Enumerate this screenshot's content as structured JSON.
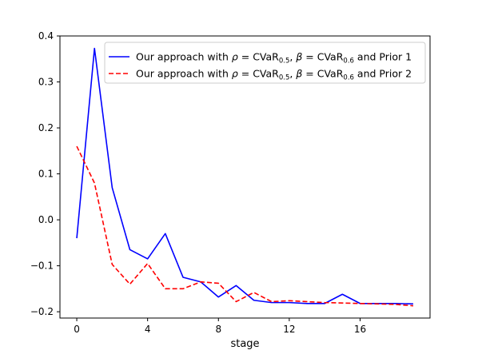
{
  "chart_data": {
    "type": "line",
    "title": "",
    "xlabel": "stage",
    "ylabel": "",
    "xlim": [
      -0.95,
      19.95
    ],
    "ylim": [
      -0.2137,
      0.4
    ],
    "xticks": [
      0,
      4,
      8,
      12,
      16
    ],
    "yticks": [
      -0.2,
      -0.1,
      0.0,
      0.1,
      0.2,
      0.3,
      0.4
    ],
    "ytick_labels": [
      "−0.2",
      "−0.1",
      "0.0",
      "0.1",
      "0.2",
      "0.3",
      "0.4"
    ],
    "grid": false,
    "legend_position": "upper right",
    "x": [
      0,
      1,
      2,
      3,
      4,
      5,
      6,
      7,
      8,
      9,
      10,
      11,
      12,
      13,
      14,
      15,
      16,
      17,
      18,
      19
    ],
    "series": [
      {
        "name": "Our approach with ρ = CVaR0.5, β = CVaR0.6 and Prior 1",
        "legend_parts": {
          "prefix": "Our approach with ",
          "rho": "ρ",
          "eq": " = CVaR",
          "sub1": "0.5",
          "mid": ", ",
          "beta": "β",
          "eq2": " = CVaR",
          "sub2": "0.6",
          "suffix": " and Prior 1"
        },
        "color": "#0000ff",
        "dash": "solid",
        "values": [
          -0.04,
          0.373,
          0.07,
          -0.065,
          -0.085,
          -0.03,
          -0.125,
          -0.135,
          -0.168,
          -0.143,
          -0.175,
          -0.18,
          -0.18,
          -0.182,
          -0.182,
          -0.162,
          -0.182,
          -0.182,
          -0.182,
          -0.183
        ]
      },
      {
        "name": "Our approach with ρ = CVaR0.5, β = CVaR0.6 and Prior 2",
        "legend_parts": {
          "prefix": "Our approach with ",
          "rho": "ρ",
          "eq": " = CVaR",
          "sub1": "0.5",
          "mid": ", ",
          "beta": "β",
          "eq2": " = CVaR",
          "sub2": "0.6",
          "suffix": " and Prior 2"
        },
        "color": "#ff0000",
        "dash": "dashed",
        "values": [
          0.16,
          0.08,
          -0.097,
          -0.14,
          -0.095,
          -0.15,
          -0.15,
          -0.135,
          -0.138,
          -0.178,
          -0.158,
          -0.178,
          -0.176,
          -0.178,
          -0.18,
          -0.181,
          -0.182,
          -0.183,
          -0.184,
          -0.187
        ]
      }
    ]
  }
}
